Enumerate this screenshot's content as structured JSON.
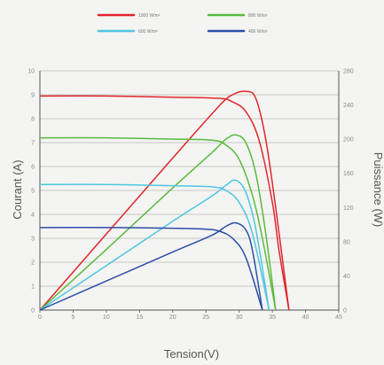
{
  "chart_data": {
    "type": "line",
    "title": "",
    "xlabel": "Tension(V)",
    "ylabel_left": "Courant (A)",
    "ylabel_right": "Puissance (W)",
    "xlim": [
      0,
      45
    ],
    "ylim_left": [
      0,
      10
    ],
    "ylim_right": [
      0,
      280
    ],
    "x_ticks": [
      "0",
      "5",
      "10",
      "15",
      "20",
      "25",
      "30",
      "35",
      "40",
      "45"
    ],
    "y_left_ticks": [
      "0",
      "1",
      "2",
      "3",
      "4",
      "5",
      "6",
      "7",
      "8",
      "9",
      "10"
    ],
    "y_right_ticks": [
      "0",
      "40",
      "80",
      "120",
      "160",
      "200",
      "240",
      "280"
    ],
    "grid": "horizontal",
    "legend_position": "top",
    "series": [
      {
        "name": "1000 W/m²",
        "color": "#e0262b",
        "current": {
          "x": [
            0,
            10,
            20,
            27,
            29,
            31,
            33,
            35,
            36,
            37.5
          ],
          "y": [
            8.95,
            8.95,
            8.9,
            8.85,
            8.7,
            8.3,
            7.1,
            4.5,
            2.5,
            0
          ]
        },
        "power": {
          "x": [
            0,
            10,
            20,
            27,
            29,
            31,
            32.5,
            34,
            35.5,
            37.5
          ],
          "y": [
            0,
            89,
            178,
            239,
            252,
            256,
            248,
            200,
            120,
            0
          ]
        }
      },
      {
        "name": "800 W/m²",
        "color": "#5aba3f",
        "current": {
          "x": [
            0,
            10,
            20,
            26,
            28,
            30,
            32,
            33.5,
            35.5
          ],
          "y": [
            7.2,
            7.2,
            7.15,
            7.1,
            6.9,
            6.3,
            4.8,
            3.0,
            0
          ]
        },
        "power": {
          "x": [
            0,
            10,
            20,
            26,
            28,
            29.5,
            31,
            32.5,
            34,
            35.5
          ],
          "y": [
            0,
            71,
            143,
            185,
            200,
            205,
            196,
            160,
            90,
            0
          ]
        }
      },
      {
        "name": "600 W/m²",
        "color": "#4ec6e0",
        "current": {
          "x": [
            0,
            10,
            20,
            26,
            28,
            30,
            32,
            34.5
          ],
          "y": [
            5.25,
            5.25,
            5.2,
            5.15,
            5.0,
            4.5,
            3.2,
            0
          ]
        },
        "power": {
          "x": [
            0,
            10,
            20,
            26,
            28,
            29.5,
            31,
            32.5,
            34.5
          ],
          "y": [
            0,
            52,
            104,
            134,
            146,
            152,
            138,
            95,
            0
          ]
        }
      },
      {
        "name": "400 W/m²",
        "color": "#2c4ea6",
        "current": {
          "x": [
            0,
            10,
            20,
            25,
            27,
            29,
            31,
            33.5
          ],
          "y": [
            3.45,
            3.45,
            3.42,
            3.38,
            3.3,
            3.0,
            2.2,
            0
          ]
        },
        "power": {
          "x": [
            0,
            10,
            20,
            26,
            28,
            29.5,
            31,
            32,
            33.5
          ],
          "y": [
            0,
            34,
            68,
            88,
            98,
            102,
            94,
            70,
            0
          ]
        }
      }
    ]
  }
}
